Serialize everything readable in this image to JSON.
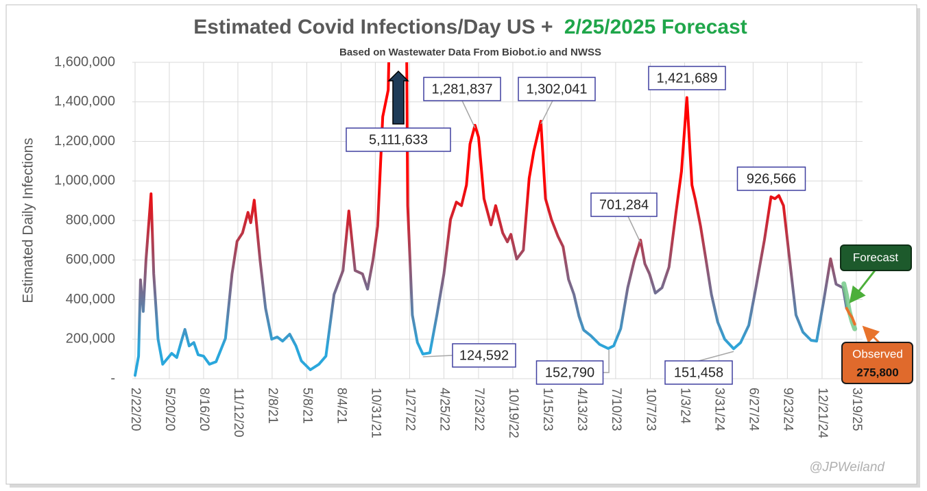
{
  "chart_data": {
    "type": "line",
    "title": "Estimated Covid Infections/Day US +",
    "title_highlight": "2/25/2025 Forecast",
    "subtitle": "Based on Wastewater Data From Biobot.io and NWSS",
    "y_label": "Estimated Daily Infections",
    "credit": "@JPWeiland",
    "color_high": "#ff0000",
    "color_low": "#2aa7dc",
    "title_highlight_color": "#1fa64a",
    "grid": true,
    "xlim": [
      "2/15/20",
      "4/4/25"
    ],
    "xticks": [
      "2/22/20",
      "5/20/20",
      "8/16/20",
      "11/12/20",
      "2/8/21",
      "5/8/21",
      "8/4/21",
      "10/31/21",
      "1/27/22",
      "4/25/22",
      "7/23/22",
      "10/19/22",
      "1/15/23",
      "4/13/23",
      "7/10/23",
      "10/7/23",
      "1/3/24",
      "3/31/24",
      "6/27/24",
      "9/23/24",
      "12/21/24",
      "3/19/25"
    ],
    "ylim": [
      0,
      1600000
    ],
    "yticks": [
      {
        "value": 0,
        "label": "-"
      },
      {
        "value": 200000,
        "label": "200,000"
      },
      {
        "value": 400000,
        "label": "400,000"
      },
      {
        "value": 600000,
        "label": "600,000"
      },
      {
        "value": 800000,
        "label": "800,000"
      },
      {
        "value": 1000000,
        "label": "1,000,000"
      },
      {
        "value": 1200000,
        "label": "1,200,000"
      },
      {
        "value": 1400000,
        "label": "1,400,000"
      },
      {
        "value": 1600000,
        "label": "1,600,000"
      }
    ],
    "series": [
      {
        "x": [
          "2/22/20",
          "3/2/20",
          "3/7/20",
          "3/14/20",
          "3/21/20",
          "4/3/20",
          "4/10/20",
          "4/21/20",
          "5/3/20",
          "5/26/20",
          "6/8/20",
          "6/20/20",
          "6/29/20",
          "7/10/20",
          "7/22/20",
          "8/2/20",
          "8/16/20",
          "8/31/20",
          "9/17/20",
          "10/11/20",
          "10/28/20",
          "11/10/20",
          "11/24/20",
          "12/8/20",
          "12/15/20",
          "12/24/20",
          "1/8/21",
          "1/22/21",
          "2/7/21",
          "2/21/21",
          "3/7/21",
          "3/25/21",
          "4/10/21",
          "4/24/21",
          "5/17/21",
          "6/8/21",
          "6/26/21",
          "7/17/21",
          "8/9/21",
          "8/24/21",
          "9/9/21",
          "9/28/21",
          "10/11/21",
          "10/25/21",
          "11/6/21",
          "11/19/21",
          "12/3/21",
          "12/17/21",
          "1/8/22",
          "1/22/22",
          "2/3/22",
          "2/16/22",
          "3/2/22",
          "3/20/22",
          "4/7/22",
          "4/25/22",
          "5/12/22",
          "5/27/22",
          "6/9/22",
          "6/22/22",
          "7/1/22",
          "7/14/22",
          "7/23/22",
          "8/6/22",
          "8/24/22",
          "9/5/22",
          "9/23/22",
          "10/5/22",
          "10/14/22",
          "10/29/22",
          "11/15/22",
          "11/30/22",
          "12/12/22",
          "12/30/22",
          "1/11/23",
          "1/26/23",
          "2/12/23",
          "2/25/23",
          "3/11/23",
          "3/25/23",
          "4/7/23",
          "4/19/23",
          "5/7/23",
          "5/30/23",
          "6/21/23",
          "7/5/23",
          "7/23/23",
          "8/10/23",
          "8/27/23",
          "9/12/23",
          "9/23/23",
          "10/5/23",
          "10/20/23",
          "11/6/23",
          "11/24/23",
          "12/12/23",
          "12/26/23",
          "1/9/24",
          "1/22/24",
          "1/31/24",
          "2/13/24",
          "2/27/24",
          "3/12/24",
          "3/28/24",
          "4/15/24",
          "5/8/24",
          "5/26/24",
          "6/16/24",
          "7/4/24",
          "7/26/24",
          "8/12/24",
          "8/22/24",
          "9/1/24",
          "9/13/24",
          "9/27/24",
          "10/15/24",
          "11/2/24",
          "11/23/24",
          "12/7/24",
          "12/25/24",
          "1/12/25",
          "1/26/25",
          "2/13/25",
          "2/22/25"
        ],
        "values": [
          17000,
          114000,
          500000,
          340000,
          600000,
          935000,
          530000,
          200000,
          73000,
          128000,
          107000,
          190000,
          249000,
          166000,
          183000,
          121000,
          114000,
          73000,
          86000,
          204000,
          530000,
          695000,
          737000,
          841000,
          789000,
          903000,
          600000,
          356000,
          200000,
          211000,
          190000,
          225000,
          166000,
          90000,
          45000,
          73000,
          114000,
          426000,
          547000,
          848000,
          547000,
          530000,
          453000,
          600000,
          772000,
          1325000,
          1460000,
          2800000,
          5111633,
          875000,
          322000,
          183000,
          124592,
          131000,
          322000,
          530000,
          806000,
          893000,
          875000,
          979000,
          1187000,
          1281837,
          1221000,
          910000,
          778000,
          875000,
          737000,
          692000,
          730000,
          605000,
          650000,
          1014000,
          1152000,
          1302041,
          910000,
          806000,
          720000,
          668000,
          502000,
          426000,
          315000,
          246000,
          218000,
          173000,
          152790,
          166000,
          253000,
          460000,
          600000,
          701284,
          581000,
          530000,
          433000,
          460000,
          564000,
          841000,
          1048000,
          1421689,
          979000,
          903000,
          772000,
          600000,
          426000,
          287000,
          200000,
          151458,
          183000,
          270000,
          460000,
          702000,
          920000,
          910000,
          926566,
          875000,
          633000,
          322000,
          235000,
          194000,
          190000,
          391000,
          606000,
          478000,
          460000,
          356000
        ],
        "value_labels": [
          null,
          null,
          null,
          null,
          null,
          null,
          null,
          null,
          null,
          null,
          null,
          null,
          null,
          null,
          null,
          null,
          null,
          null,
          null,
          null,
          null,
          null,
          null,
          null,
          null,
          null,
          null,
          null,
          null,
          null,
          null,
          null,
          null,
          null,
          null,
          null,
          null,
          null,
          null,
          null,
          null,
          null,
          null,
          null,
          null,
          null,
          null,
          null,
          "5,111,633",
          null,
          null,
          null,
          "124,592",
          null,
          null,
          null,
          null,
          null,
          null,
          null,
          null,
          "1,281,837",
          null,
          null,
          null,
          null,
          null,
          null,
          null,
          null,
          null,
          null,
          null,
          "1,302,041",
          null,
          null,
          null,
          null,
          null,
          null,
          null,
          null,
          null,
          null,
          "152,790",
          null,
          null,
          null,
          null,
          "701,284",
          null,
          null,
          null,
          null,
          null,
          null,
          null,
          "1,421,689",
          null,
          null,
          null,
          null,
          null,
          null,
          null,
          "151,458",
          null,
          null,
          null,
          null,
          null,
          null,
          "926,566",
          null,
          null,
          null,
          null,
          null,
          null,
          null,
          null,
          null,
          null,
          null
        ]
      },
      {
        "name": "Forecast",
        "color": "#74c98a",
        "x": [
          "2/15/25",
          "2/22/25",
          "3/1/25",
          "3/8/25",
          "3/15/25"
        ],
        "values": [
          480000,
          420000,
          340000,
          290000,
          252000
        ]
      },
      {
        "name": "Observed",
        "color": "#e8732c",
        "x": [
          "2/22/25",
          "3/1/25",
          "3/8/25",
          "3/15/25"
        ],
        "values": [
          356000,
          330000,
          310000,
          275800
        ],
        "value_labels": [
          null,
          null,
          null,
          "275,800"
        ]
      }
    ]
  }
}
